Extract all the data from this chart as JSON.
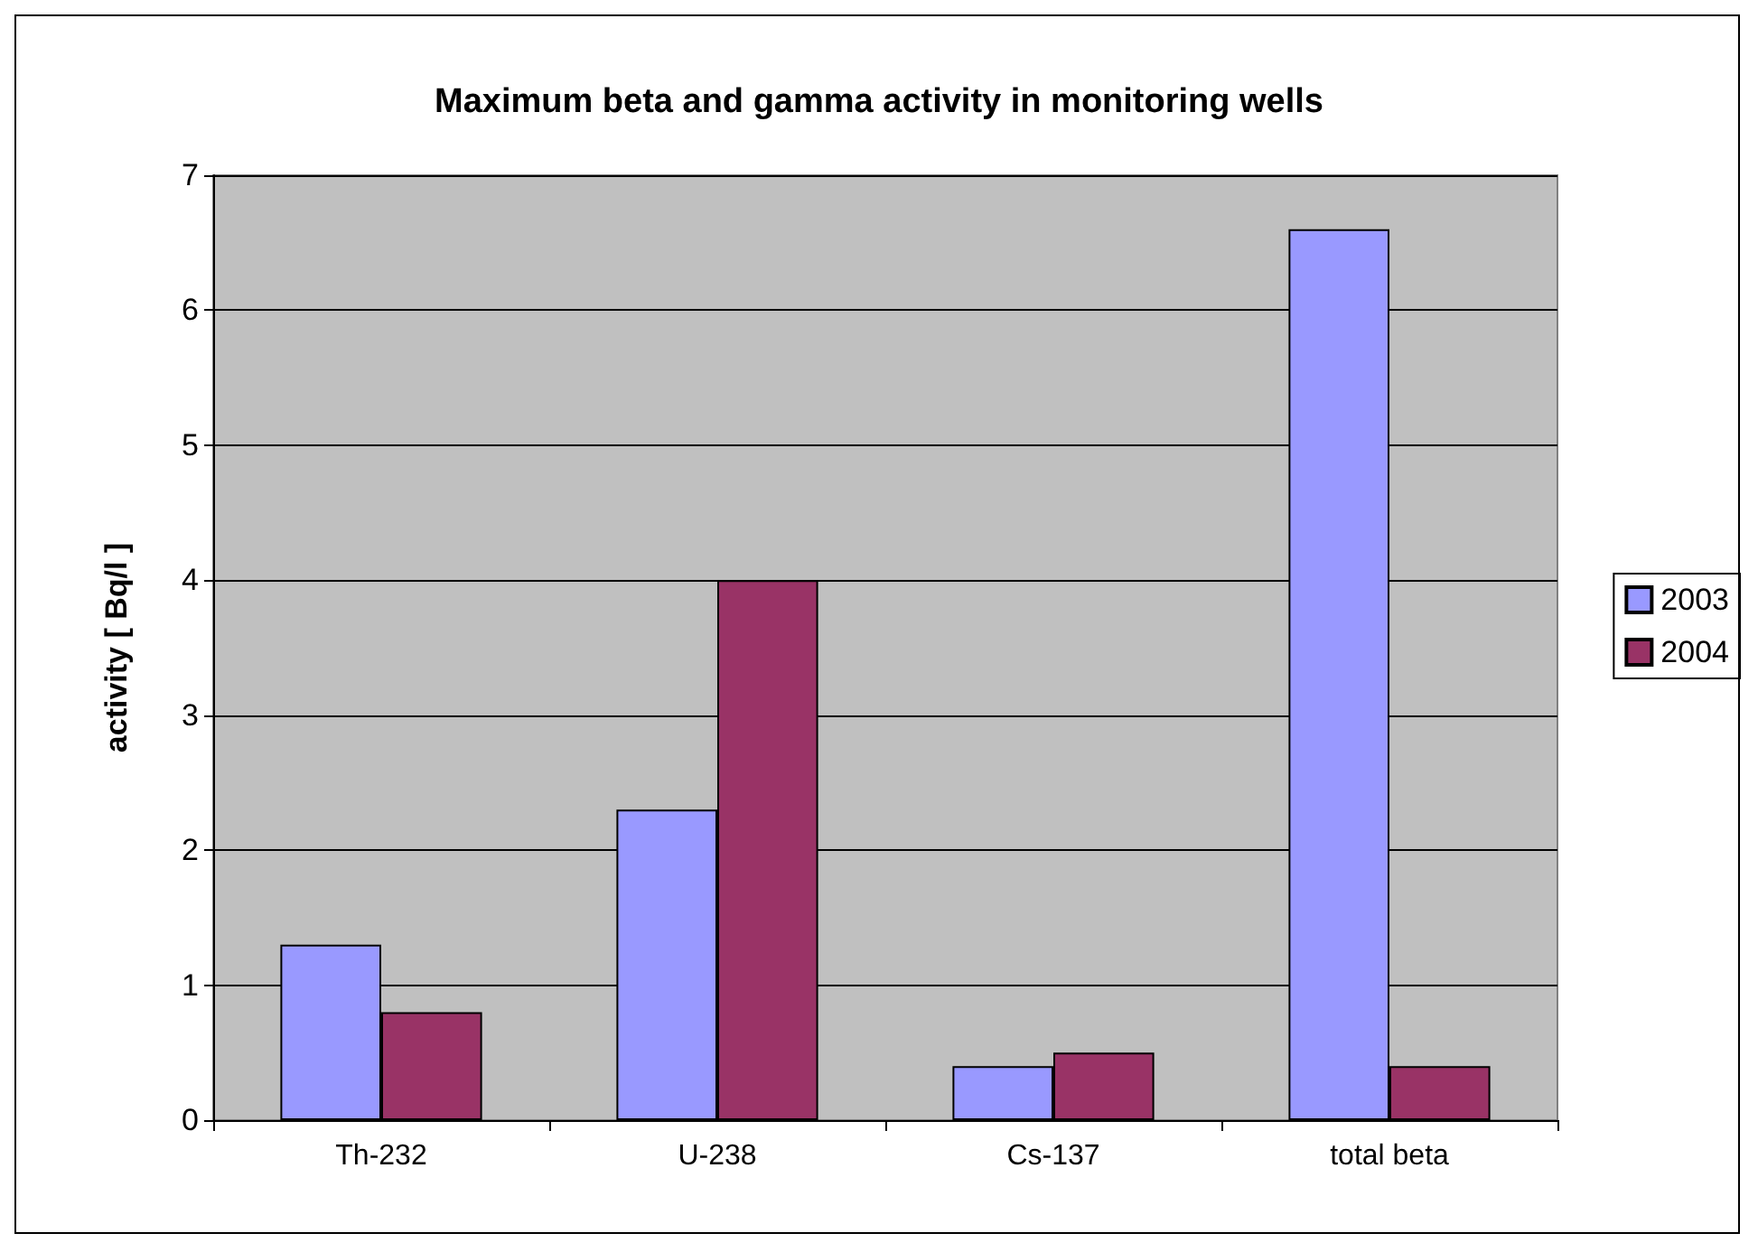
{
  "chart_data": {
    "type": "bar",
    "title": "Maximum beta and gamma activity in monitoring wells",
    "ylabel": "activity [ Bq/l ]",
    "categories": [
      "Th-232",
      "U-238",
      "Cs-137",
      "total beta"
    ],
    "series": [
      {
        "name": "2003",
        "color": "#9999ff",
        "values": [
          1.3,
          2.3,
          0.4,
          6.6
        ]
      },
      {
        "name": "2004",
        "color": "#993366",
        "values": [
          0.8,
          4.0,
          0.5,
          0.4
        ]
      }
    ],
    "ylim": [
      0,
      7
    ],
    "yticks": [
      0,
      1,
      2,
      3,
      4,
      5,
      6,
      7
    ],
    "grid": "y",
    "legend": "right"
  }
}
